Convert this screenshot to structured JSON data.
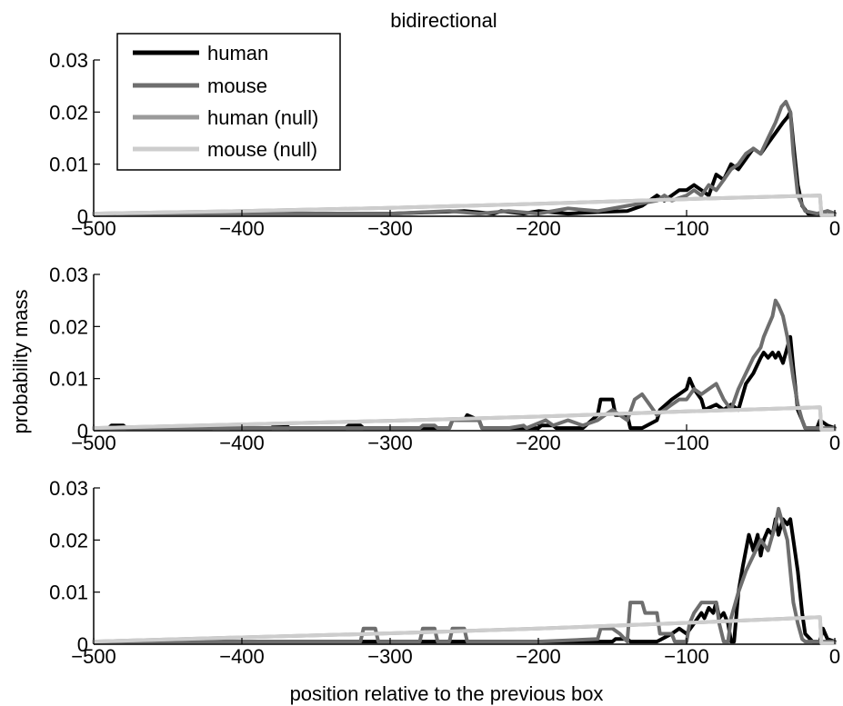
{
  "figure": {
    "title": "bidirectional",
    "xlabel": "position relative to the previous box",
    "ylabel": "probability mass"
  },
  "legend": {
    "placement": "top-left",
    "entries": [
      {
        "label": "human",
        "color": "#000000"
      },
      {
        "label": "mouse",
        "color": "#6e6e6e"
      },
      {
        "label": "human (null)",
        "color": "#9a9a9a"
      },
      {
        "label": "mouse (null)",
        "color": "#cdcdcd"
      }
    ]
  },
  "chart_data": [
    {
      "type": "line",
      "title": "bidirectional",
      "xlim": [
        -500,
        0
      ],
      "ylim": [
        0,
        0.03
      ],
      "xticks": [
        -500,
        -400,
        -300,
        -200,
        -100,
        0
      ],
      "xtick_labels": [
        "−500",
        "−400",
        "−300",
        "−200",
        "−100",
        "0"
      ],
      "yticks": [
        0,
        0.01,
        0.02,
        0.03
      ],
      "ytick_labels": [
        "0",
        "0.01",
        "0.02",
        "0.03"
      ],
      "series": [
        {
          "name": "human",
          "color": "#000000",
          "x": [
            -500,
            -300,
            -250,
            -230,
            -225,
            -210,
            -200,
            -180,
            -160,
            -140,
            -130,
            -125,
            -120,
            -115,
            -110,
            -105,
            -100,
            -95,
            -90,
            -85,
            -80,
            -75,
            -70,
            -65,
            -60,
            -55,
            -50,
            -45,
            -40,
            -35,
            -32,
            -30,
            -28,
            -25,
            -22,
            -18,
            -10,
            -5,
            0
          ],
          "y": [
            0.0005,
            0.0005,
            0.001,
            0.0005,
            0.001,
            0.0005,
            0.001,
            0.0005,
            0.0008,
            0.001,
            0.002,
            0.003,
            0.004,
            0.003,
            0.004,
            0.005,
            0.005,
            0.006,
            0.005,
            0.004,
            0.008,
            0.007,
            0.01,
            0.009,
            0.011,
            0.013,
            0.012,
            0.014,
            0.016,
            0.018,
            0.019,
            0.02,
            0.014,
            0.006,
            0.002,
            0.0005,
            0.0005,
            0.001,
            0.0005
          ]
        },
        {
          "name": "mouse",
          "color": "#6e6e6e",
          "x": [
            -500,
            -300,
            -260,
            -240,
            -220,
            -200,
            -180,
            -160,
            -140,
            -130,
            -120,
            -115,
            -110,
            -100,
            -95,
            -90,
            -85,
            -80,
            -75,
            -70,
            -65,
            -60,
            -55,
            -50,
            -45,
            -40,
            -36,
            -33,
            -30,
            -28,
            -25,
            -20,
            -12,
            -5,
            0
          ],
          "y": [
            0.0005,
            0.0005,
            0.001,
            0.0005,
            0.001,
            0.0005,
            0.0015,
            0.001,
            0.002,
            0.0025,
            0.003,
            0.004,
            0.003,
            0.004,
            0.005,
            0.004,
            0.006,
            0.005,
            0.007,
            0.009,
            0.01,
            0.012,
            0.013,
            0.012,
            0.015,
            0.018,
            0.021,
            0.022,
            0.02,
            0.012,
            0.004,
            0.001,
            0.0005,
            0.001,
            0.0005
          ]
        },
        {
          "name": "human (null)",
          "color": "#9a9a9a",
          "x": [
            -500,
            -400,
            -300,
            -200,
            -100,
            -10,
            -9,
            0
          ],
          "y": [
            0.0005,
            0.001,
            0.0016,
            0.0024,
            0.0033,
            0.004,
            0.0002,
            0.0002
          ]
        },
        {
          "name": "mouse (null)",
          "color": "#cdcdcd",
          "x": [
            -500,
            -400,
            -300,
            -200,
            -100,
            -10,
            -9,
            0
          ],
          "y": [
            0.0005,
            0.001,
            0.0016,
            0.0024,
            0.0033,
            0.004,
            0.0002,
            0.0002
          ]
        }
      ]
    },
    {
      "type": "line",
      "xlim": [
        -500,
        0
      ],
      "ylim": [
        0,
        0.03
      ],
      "xticks": [
        -500,
        -400,
        -300,
        -200,
        -100,
        0
      ],
      "xtick_labels": [
        "−500",
        "−400",
        "−300",
        "−200",
        "−100",
        "0"
      ],
      "yticks": [
        0,
        0.01,
        0.02,
        0.03
      ],
      "ytick_labels": [
        "0",
        "0.01",
        "0.02",
        "0.03"
      ],
      "series": [
        {
          "name": "human",
          "color": "#000000",
          "x": [
            -500,
            -490,
            -488,
            -480,
            -478,
            -420,
            -418,
            -410,
            -408,
            -380,
            -378,
            -370,
            -368,
            -330,
            -328,
            -320,
            -318,
            -260,
            -258,
            -250,
            -248,
            -240,
            -238,
            -200,
            -198,
            -190,
            -188,
            -170,
            -160,
            -158,
            -150,
            -148,
            -140,
            -138,
            -130,
            -120,
            -118,
            -110,
            -100,
            -98,
            -95,
            -90,
            -88,
            -80,
            -75,
            -70,
            -65,
            -60,
            -55,
            -50,
            -48,
            -45,
            -42,
            -40,
            -38,
            -35,
            -32,
            -30,
            -28,
            -25,
            -22,
            -20,
            -12,
            -10,
            -5,
            0
          ],
          "y": [
            0.0005,
            0.0005,
            0.001,
            0.001,
            0.0005,
            0.0005,
            0.001,
            0.001,
            0.0005,
            0.0005,
            0.001,
            0.001,
            0.0005,
            0.0005,
            0.001,
            0.001,
            0.0005,
            0.0005,
            0.002,
            0.002,
            0.003,
            0.002,
            0.0005,
            0.0005,
            0.001,
            0.001,
            0.0005,
            0.0005,
            0.003,
            0.006,
            0.006,
            0.003,
            0.003,
            0.0005,
            0.0005,
            0.002,
            0.004,
            0.006,
            0.008,
            0.01,
            0.008,
            0.006,
            0.004,
            0.005,
            0.004,
            0.005,
            0.004,
            0.009,
            0.011,
            0.014,
            0.015,
            0.014,
            0.015,
            0.014,
            0.015,
            0.013,
            0.016,
            0.018,
            0.012,
            0.004,
            0.002,
            0.0005,
            0.0005,
            0.002,
            0.001,
            0.0005
          ]
        },
        {
          "name": "mouse",
          "color": "#6e6e6e",
          "x": [
            -500,
            -300,
            -280,
            -278,
            -270,
            -268,
            -260,
            -258,
            -240,
            -238,
            -220,
            -210,
            -208,
            -195,
            -190,
            -180,
            -170,
            -160,
            -150,
            -140,
            -135,
            -130,
            -125,
            -120,
            -115,
            -110,
            -105,
            -100,
            -95,
            -90,
            -85,
            -80,
            -75,
            -70,
            -65,
            -60,
            -55,
            -50,
            -48,
            -45,
            -42,
            -40,
            -38,
            -35,
            -32,
            -30,
            -28,
            -25,
            -22,
            -20,
            -15,
            -10,
            0
          ],
          "y": [
            0.0005,
            0.0005,
            0.0005,
            0.001,
            0.001,
            0.0005,
            0.0005,
            0.002,
            0.002,
            0.0005,
            0.0005,
            0.001,
            0.0005,
            0.002,
            0.001,
            0.002,
            0.001,
            0.002,
            0.004,
            0.002,
            0.006,
            0.007,
            0.005,
            0.003,
            0.004,
            0.005,
            0.006,
            0.006,
            0.008,
            0.007,
            0.008,
            0.009,
            0.006,
            0.004,
            0.008,
            0.011,
            0.014,
            0.016,
            0.018,
            0.02,
            0.022,
            0.025,
            0.024,
            0.022,
            0.018,
            0.014,
            0.01,
            0.005,
            0.002,
            0.0005,
            0.0005,
            0.0005,
            0.0005
          ]
        },
        {
          "name": "human (null)",
          "color": "#9a9a9a",
          "x": [
            -500,
            -400,
            -300,
            -200,
            -100,
            -10,
            -9,
            0
          ],
          "y": [
            0.0005,
            0.0012,
            0.0019,
            0.0027,
            0.0037,
            0.0045,
            0.0002,
            0.0002
          ]
        },
        {
          "name": "mouse (null)",
          "color": "#cdcdcd",
          "x": [
            -500,
            -400,
            -300,
            -200,
            -100,
            -10,
            -9,
            0
          ],
          "y": [
            0.0005,
            0.0012,
            0.0019,
            0.0027,
            0.0037,
            0.0045,
            0.0002,
            0.0002
          ]
        }
      ]
    },
    {
      "type": "line",
      "xlim": [
        -500,
        0
      ],
      "ylim": [
        0,
        0.03
      ],
      "xticks": [
        -500,
        -400,
        -300,
        -200,
        -100,
        0
      ],
      "xtick_labels": [
        "−500",
        "−400",
        "−300",
        "−200",
        "−100",
        "0"
      ],
      "yticks": [
        0,
        0.01,
        0.02,
        0.03
      ],
      "ytick_labels": [
        "0",
        "0.01",
        "0.02",
        "0.03"
      ],
      "series": [
        {
          "name": "human",
          "color": "#000000",
          "x": [
            -500,
            -200,
            -150,
            -148,
            -140,
            -138,
            -120,
            -110,
            -105,
            -100,
            -95,
            -90,
            -88,
            -85,
            -82,
            -80,
            -78,
            -75,
            -72,
            -70,
            -68,
            -65,
            -62,
            -60,
            -58,
            -55,
            -52,
            -50,
            -48,
            -45,
            -42,
            -40,
            -38,
            -35,
            -32,
            -30,
            -28,
            -25,
            -22,
            -20,
            -15,
            -10,
            -8,
            -5,
            0
          ],
          "y": [
            0.0005,
            0.0005,
            0.0005,
            0.001,
            0.001,
            0.0005,
            0.0005,
            0.002,
            0.003,
            0.002,
            0.004,
            0.006,
            0.005,
            0.007,
            0.006,
            0.008,
            0.005,
            0.006,
            0.004,
            0.0005,
            0.0005,
            0.01,
            0.015,
            0.018,
            0.021,
            0.018,
            0.021,
            0.017,
            0.02,
            0.022,
            0.021,
            0.024,
            0.021,
            0.024,
            0.023,
            0.024,
            0.02,
            0.014,
            0.006,
            0.002,
            0.0005,
            0.0005,
            0.003,
            0.001,
            0.0005
          ]
        },
        {
          "name": "mouse",
          "color": "#6e6e6e",
          "x": [
            -500,
            -320,
            -318,
            -310,
            -308,
            -280,
            -278,
            -270,
            -268,
            -260,
            -258,
            -250,
            -248,
            -200,
            -160,
            -158,
            -150,
            -145,
            -140,
            -138,
            -130,
            -128,
            -120,
            -118,
            -110,
            -108,
            -100,
            -98,
            -95,
            -90,
            -88,
            -80,
            -78,
            -75,
            -72,
            -70,
            -65,
            -60,
            -55,
            -50,
            -45,
            -42,
            -40,
            -38,
            -36,
            -34,
            -32,
            -30,
            -28,
            -25,
            -22,
            -20,
            -15,
            -10,
            0
          ],
          "y": [
            0.0005,
            0.0005,
            0.003,
            0.003,
            0.0005,
            0.0005,
            0.003,
            0.003,
            0.0005,
            0.0005,
            0.003,
            0.003,
            0.0005,
            0.0005,
            0.001,
            0.003,
            0.003,
            0.002,
            0.0005,
            0.008,
            0.008,
            0.006,
            0.006,
            0.002,
            0.002,
            0.0005,
            0.0005,
            0.004,
            0.006,
            0.008,
            0.008,
            0.008,
            0.004,
            0.0005,
            0.0005,
            0.005,
            0.01,
            0.014,
            0.017,
            0.02,
            0.018,
            0.021,
            0.023,
            0.026,
            0.024,
            0.022,
            0.02,
            0.014,
            0.008,
            0.004,
            0.001,
            0.0005,
            0.0005,
            0.0005,
            0.0005
          ]
        },
        {
          "name": "human (null)",
          "color": "#9a9a9a",
          "x": [
            -500,
            -400,
            -300,
            -200,
            -100,
            -10,
            -9,
            0
          ],
          "y": [
            0.0005,
            0.0013,
            0.0021,
            0.003,
            0.0041,
            0.0052,
            0.0002,
            0.0002
          ]
        },
        {
          "name": "mouse (null)",
          "color": "#cdcdcd",
          "x": [
            -500,
            -400,
            -300,
            -200,
            -100,
            -10,
            -9,
            0
          ],
          "y": [
            0.0005,
            0.0013,
            0.0021,
            0.003,
            0.0041,
            0.0052,
            0.0002,
            0.0002
          ]
        }
      ]
    }
  ]
}
